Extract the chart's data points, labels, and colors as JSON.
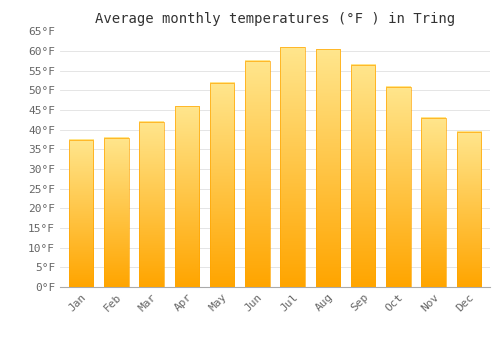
{
  "title": "Average monthly temperatures (°F ) in Tring",
  "months": [
    "Jan",
    "Feb",
    "Mar",
    "Apr",
    "May",
    "Jun",
    "Jul",
    "Aug",
    "Sep",
    "Oct",
    "Nov",
    "Dec"
  ],
  "values": [
    37.5,
    38.0,
    42.0,
    46.0,
    52.0,
    57.5,
    61.0,
    60.5,
    56.5,
    51.0,
    43.0,
    39.5
  ],
  "bar_color_top": "#FFD966",
  "bar_color_bottom": "#FFA500",
  "background_color": "#FFFFFF",
  "ylim": [
    0,
    65
  ],
  "yticks": [
    0,
    5,
    10,
    15,
    20,
    25,
    30,
    35,
    40,
    45,
    50,
    55,
    60,
    65
  ],
  "title_fontsize": 10,
  "tick_fontsize": 8,
  "grid_color": "#E0E0E0"
}
